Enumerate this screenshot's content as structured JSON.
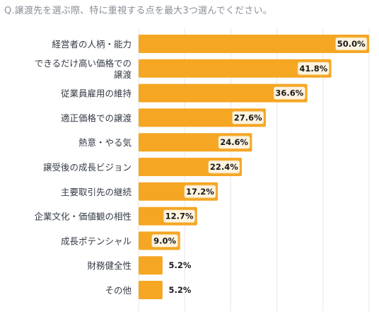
{
  "chart_data": {
    "type": "bar",
    "orientation": "horizontal",
    "title": "Q.譲渡先を選ぶ際、特に重視する点を最大3つ選んでください。",
    "categories": [
      "経営者の人柄・能力",
      "できるだけ高い価格での譲渡",
      "従業員雇用の維持",
      "適正価格での譲渡",
      "熱意・やる気",
      "譲受後の成長ビジョン",
      "主要取引先の継続",
      "企業文化・価値観の相性",
      "成長ポテンシャル",
      "財務健全性",
      "その他"
    ],
    "values": [
      50.0,
      41.8,
      36.6,
      27.6,
      24.6,
      22.4,
      17.2,
      12.7,
      9.0,
      5.2,
      5.2
    ],
    "value_labels": [
      "50.0%",
      "41.8%",
      "36.6%",
      "27.6%",
      "24.6%",
      "22.4%",
      "17.2%",
      "12.7%",
      "9.0%",
      "5.2%",
      "5.2%"
    ],
    "xlim": [
      0,
      50
    ],
    "grid": true,
    "bar_color": "#f5a623",
    "label_bg_color": "#fdf3df"
  }
}
